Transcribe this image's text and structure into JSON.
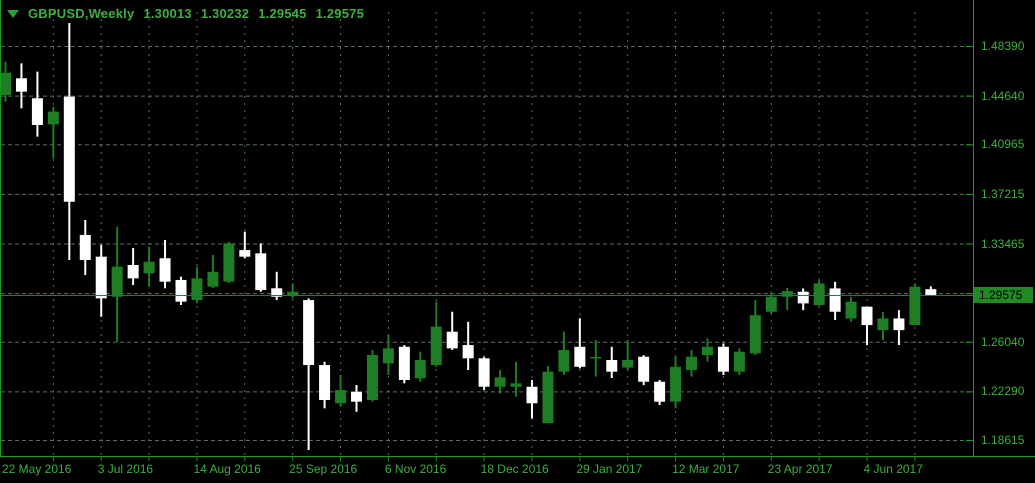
{
  "window": {
    "symbol_timeframe": "GBPUSD,Weekly",
    "open": "1.30013",
    "high": "1.30232",
    "low": "1.29545",
    "close": "1.29575"
  },
  "colors": {
    "background": "#000000",
    "bull_candle": "#1f7d23",
    "bear_candle": "#ffffff",
    "axis_line": "#16a016",
    "text_green": "#3fae3f",
    "grid": "#587163",
    "price_line": "#217953",
    "price_tag_bg": "#218a25",
    "price_tag_text": "#000000"
  },
  "y_axis": {
    "labels": [
      "1.48390",
      "1.44640",
      "1.40965",
      "1.37215",
      "1.33465",
      "1.26040",
      "1.22290",
      "1.18615"
    ],
    "label_values": [
      1.4839,
      1.4464,
      1.40965,
      1.37215,
      1.33465,
      1.2604,
      1.2229,
      1.18615
    ],
    "gridline_values": [
      1.4839,
      1.4464,
      1.40965,
      1.37215,
      1.33465,
      1.29715,
      1.2604,
      1.2229,
      1.18615
    ],
    "current_price": "1.29575"
  },
  "x_axis": {
    "labels": [
      {
        "text": "22 May 2016",
        "candle_index": 0
      },
      {
        "text": "3 Jul 2016",
        "candle_index": 6
      },
      {
        "text": "14 Aug 2016",
        "candle_index": 12
      },
      {
        "text": "25 Sep 2016",
        "candle_index": 18
      },
      {
        "text": "6 Nov 2016",
        "candle_index": 24
      },
      {
        "text": "18 Dec 2016",
        "candle_index": 30
      },
      {
        "text": "29 Jan 2017",
        "candle_index": 36
      },
      {
        "text": "12 Mar 2017",
        "candle_index": 42
      },
      {
        "text": "23 Apr 2017",
        "candle_index": 48
      },
      {
        "text": "4 Jun 2017",
        "candle_index": 54
      }
    ],
    "grid_every_n_candles": 3
  },
  "chart_data": {
    "type": "candlestick",
    "title": "GBPUSD,Weekly",
    "symbol": "GBPUSD",
    "timeframe": "Weekly",
    "ylim": [
      1.1741,
      1.5187
    ],
    "grid": true,
    "price_line": 1.29575,
    "candles": [
      {
        "d": "22 May 2016",
        "o": 1.4469,
        "h": 1.472,
        "l": 1.4418,
        "c": 1.4637
      },
      {
        "d": "29 May 2016",
        "o": 1.4595,
        "h": 1.4708,
        "l": 1.4368,
        "c": 1.4494
      },
      {
        "d": "5 Jun 2016",
        "o": 1.4444,
        "h": 1.4645,
        "l": 1.4154,
        "c": 1.4242
      },
      {
        "d": "12 Jun 2016",
        "o": 1.4247,
        "h": 1.438,
        "l": 1.399,
        "c": 1.4343
      },
      {
        "d": "19 Jun 2016",
        "o": 1.4456,
        "h": 1.5013,
        "l": 1.3222,
        "c": 1.3662
      },
      {
        "d": "26 Jun 2016",
        "o": 1.3411,
        "h": 1.3524,
        "l": 1.3108,
        "c": 1.3222
      },
      {
        "d": "3 Jul 2016",
        "o": 1.3247,
        "h": 1.3335,
        "l": 1.2793,
        "c": 1.2932
      },
      {
        "d": "10 Jul 2016",
        "o": 1.2944,
        "h": 1.3474,
        "l": 1.2604,
        "c": 1.3171
      },
      {
        "d": "17 Jul 2016",
        "o": 1.3184,
        "h": 1.3312,
        "l": 1.3033,
        "c": 1.3083
      },
      {
        "d": "24 Jul 2016",
        "o": 1.3121,
        "h": 1.3322,
        "l": 1.302,
        "c": 1.3209
      },
      {
        "d": "31 Jul 2016",
        "o": 1.3235,
        "h": 1.3373,
        "l": 1.3008,
        "c": 1.3058
      },
      {
        "d": "7 Aug 2016",
        "o": 1.3071,
        "h": 1.3096,
        "l": 1.2882,
        "c": 1.2907
      },
      {
        "d": "14 Aug 2016",
        "o": 1.2919,
        "h": 1.3171,
        "l": 1.2895,
        "c": 1.3083
      },
      {
        "d": "21 Aug 2016",
        "o": 1.302,
        "h": 1.326,
        "l": 1.301,
        "c": 1.3133
      },
      {
        "d": "28 Aug 2016",
        "o": 1.3058,
        "h": 1.336,
        "l": 1.3048,
        "c": 1.3348
      },
      {
        "d": "4 Sep 2016",
        "o": 1.3297,
        "h": 1.3436,
        "l": 1.3235,
        "c": 1.3247
      },
      {
        "d": "11 Sep 2016",
        "o": 1.3272,
        "h": 1.3348,
        "l": 1.2982,
        "c": 1.2995
      },
      {
        "d": "18 Sep 2016",
        "o": 1.3008,
        "h": 1.3133,
        "l": 1.2919,
        "c": 1.2944
      },
      {
        "d": "25 Sep 2016",
        "o": 1.2957,
        "h": 1.3046,
        "l": 1.2932,
        "c": 1.2982
      },
      {
        "d": "2 Oct 2016",
        "o": 1.2919,
        "h": 1.2932,
        "l": 1.1786,
        "c": 1.2428
      },
      {
        "d": "9 Oct 2016",
        "o": 1.2428,
        "h": 1.2453,
        "l": 1.2101,
        "c": 1.2164
      },
      {
        "d": "16 Oct 2016",
        "o": 1.2139,
        "h": 1.2353,
        "l": 1.2113,
        "c": 1.2239
      },
      {
        "d": "23 Oct 2016",
        "o": 1.2226,
        "h": 1.2277,
        "l": 1.2075,
        "c": 1.2151
      },
      {
        "d": "30 Oct 2016",
        "o": 1.2164,
        "h": 1.2542,
        "l": 1.2151,
        "c": 1.2504
      },
      {
        "d": "6 Nov 2016",
        "o": 1.2441,
        "h": 1.2655,
        "l": 1.2353,
        "c": 1.2554
      },
      {
        "d": "13 Nov 2016",
        "o": 1.2566,
        "h": 1.2579,
        "l": 1.229,
        "c": 1.2315
      },
      {
        "d": "20 Nov 2016",
        "o": 1.2328,
        "h": 1.2529,
        "l": 1.2302,
        "c": 1.2466
      },
      {
        "d": "27 Nov 2016",
        "o": 1.2428,
        "h": 1.2907,
        "l": 1.2415,
        "c": 1.2718
      },
      {
        "d": "4 Dec 2016",
        "o": 1.268,
        "h": 1.2831,
        "l": 1.2542,
        "c": 1.2554
      },
      {
        "d": "11 Dec 2016",
        "o": 1.2579,
        "h": 1.2755,
        "l": 1.239,
        "c": 1.2479
      },
      {
        "d": "18 Dec 2016",
        "o": 1.2479,
        "h": 1.2491,
        "l": 1.2239,
        "c": 1.2264
      },
      {
        "d": "25 Dec 2016",
        "o": 1.2264,
        "h": 1.239,
        "l": 1.2214,
        "c": 1.2335
      },
      {
        "d": "1 Jan 2017",
        "o": 1.2264,
        "h": 1.2453,
        "l": 1.2189,
        "c": 1.229
      },
      {
        "d": "8 Jan 2017",
        "o": 1.2264,
        "h": 1.2315,
        "l": 1.2025,
        "c": 1.2139
      },
      {
        "d": "15 Jan 2017",
        "o": 1.1988,
        "h": 1.2421,
        "l": 1.1988,
        "c": 1.2378
      },
      {
        "d": "22 Jan 2017",
        "o": 1.2378,
        "h": 1.268,
        "l": 1.2353,
        "c": 1.2542
      },
      {
        "d": "29 Jan 2017",
        "o": 1.2566,
        "h": 1.2781,
        "l": 1.2403,
        "c": 1.2415
      },
      {
        "d": "5 Feb 2017",
        "o": 1.2479,
        "h": 1.2617,
        "l": 1.234,
        "c": 1.2489
      },
      {
        "d": "12 Feb 2017",
        "o": 1.2466,
        "h": 1.2566,
        "l": 1.233,
        "c": 1.2378
      },
      {
        "d": "19 Feb 2017",
        "o": 1.2409,
        "h": 1.2617,
        "l": 1.239,
        "c": 1.2466
      },
      {
        "d": "26 Feb 2017",
        "o": 1.2491,
        "h": 1.2503,
        "l": 1.2276,
        "c": 1.2302
      },
      {
        "d": "5 Mar 2017",
        "o": 1.2302,
        "h": 1.2315,
        "l": 1.2126,
        "c": 1.2151
      },
      {
        "d": "12 Mar 2017",
        "o": 1.2151,
        "h": 1.2491,
        "l": 1.2101,
        "c": 1.2415
      },
      {
        "d": "19 Mar 2017",
        "o": 1.239,
        "h": 1.2541,
        "l": 1.234,
        "c": 1.2491
      },
      {
        "d": "26 Mar 2017",
        "o": 1.2503,
        "h": 1.263,
        "l": 1.2453,
        "c": 1.2566
      },
      {
        "d": "2 Apr 2017",
        "o": 1.2566,
        "h": 1.2591,
        "l": 1.2353,
        "c": 1.2378
      },
      {
        "d": "9 Apr 2017",
        "o": 1.2378,
        "h": 1.2554,
        "l": 1.2353,
        "c": 1.2529
      },
      {
        "d": "16 Apr 2017",
        "o": 1.2516,
        "h": 1.2919,
        "l": 1.2503,
        "c": 1.2805
      },
      {
        "d": "23 Apr 2017",
        "o": 1.2831,
        "h": 1.2982,
        "l": 1.2818,
        "c": 1.2944
      },
      {
        "d": "30 Apr 2017",
        "o": 1.2944,
        "h": 1.3012,
        "l": 1.2843,
        "c": 1.2987
      },
      {
        "d": "7 May 2017",
        "o": 1.2982,
        "h": 1.3007,
        "l": 1.2843,
        "c": 1.2894
      },
      {
        "d": "14 May 2017",
        "o": 1.2881,
        "h": 1.307,
        "l": 1.2875,
        "c": 1.3045
      },
      {
        "d": "21 May 2017",
        "o": 1.3007,
        "h": 1.3057,
        "l": 1.2768,
        "c": 1.2831
      },
      {
        "d": "28 May 2017",
        "o": 1.278,
        "h": 1.2944,
        "l": 1.2755,
        "c": 1.2907
      },
      {
        "d": "4 Jun 2017",
        "o": 1.2869,
        "h": 1.2871,
        "l": 1.2579,
        "c": 1.273
      },
      {
        "d": "11 Jun 2017",
        "o": 1.2692,
        "h": 1.2831,
        "l": 1.2616,
        "c": 1.278
      },
      {
        "d": "18 Jun 2017",
        "o": 1.278,
        "h": 1.2843,
        "l": 1.2579,
        "c": 1.2692
      },
      {
        "d": "25 Jun 2017",
        "o": 1.273,
        "h": 1.3045,
        "l": 1.273,
        "c": 1.302
      },
      {
        "d": "2 Jul 2017",
        "o": 1.30013,
        "h": 1.30232,
        "l": 1.29545,
        "c": 1.29575
      }
    ]
  }
}
